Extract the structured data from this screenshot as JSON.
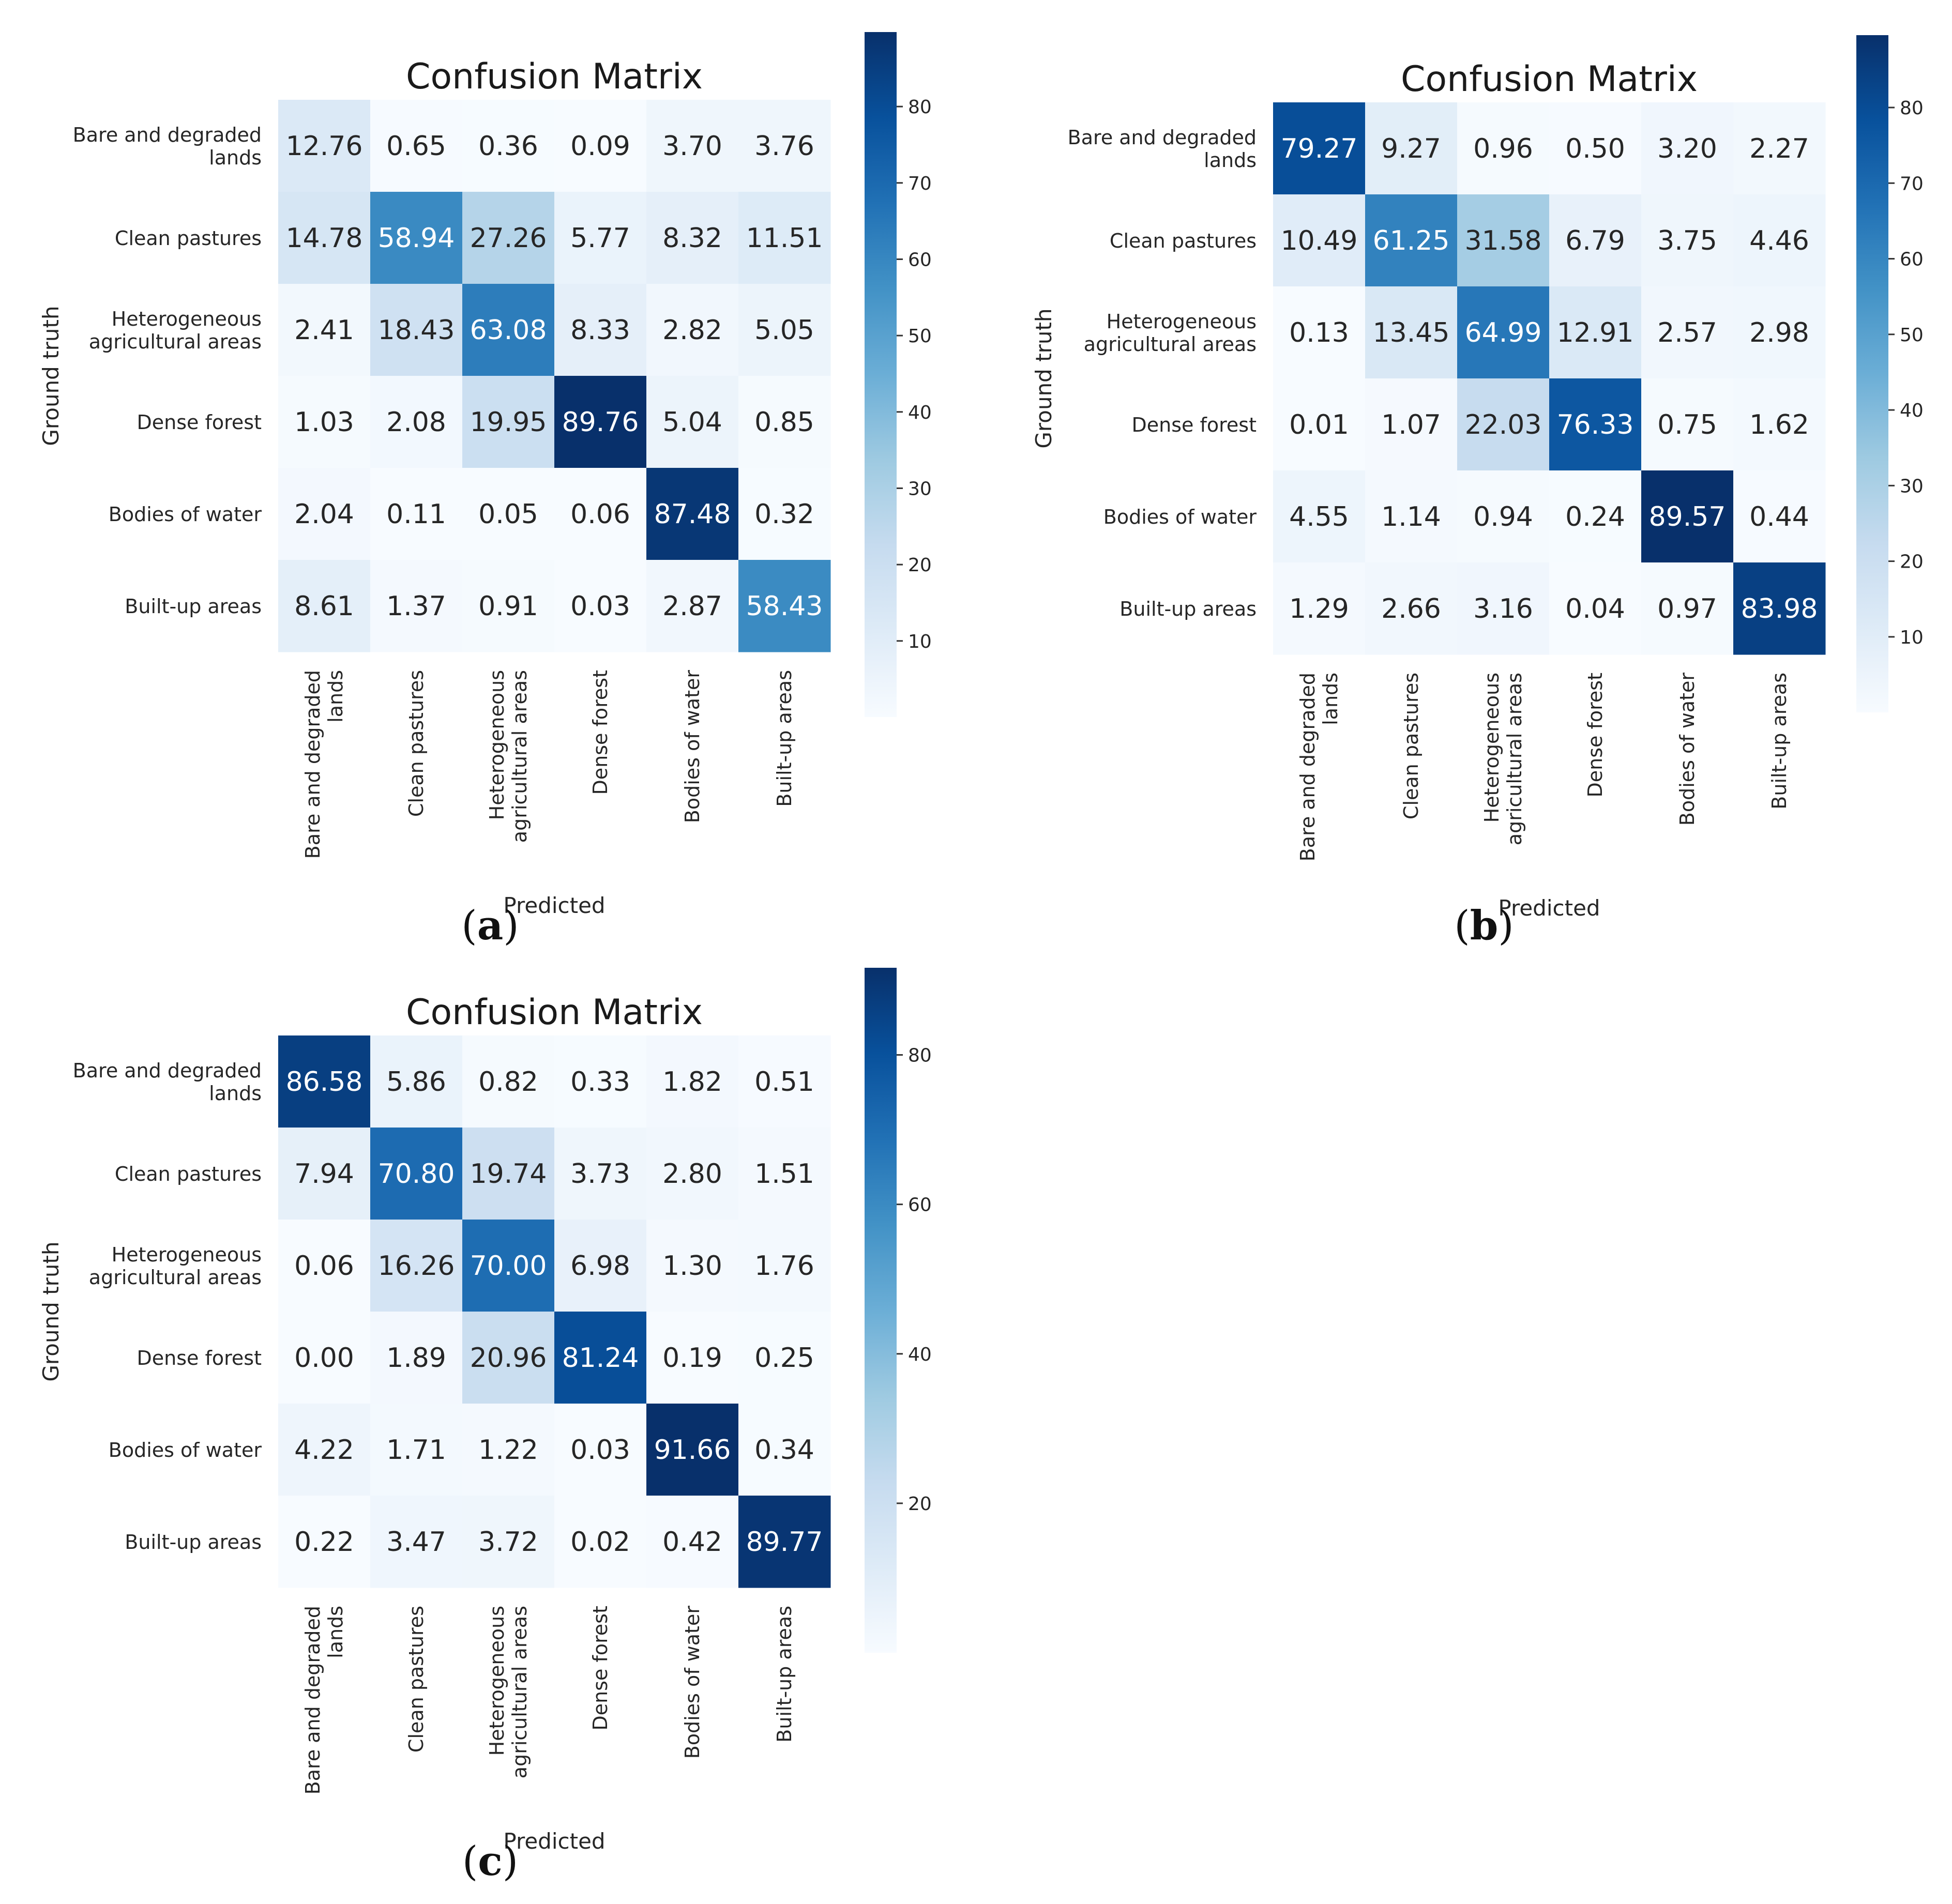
{
  "chart_data": [
    {
      "type": "heatmap",
      "panel_label": "a",
      "title": "Confusion Matrix",
      "xlabel": "Predicted",
      "ylabel": "Ground truth",
      "row_labels": [
        [
          "Bare and degraded",
          "lands"
        ],
        [
          "Clean pastures"
        ],
        [
          "Heterogeneous",
          "agricultural areas"
        ],
        [
          "Dense forest"
        ],
        [
          "Bodies of water"
        ],
        [
          "Built-up areas"
        ]
      ],
      "col_labels": [
        [
          "Bare and degraded",
          "lands"
        ],
        [
          "Clean pastures"
        ],
        [
          "Heterogeneous",
          "agricultural areas"
        ],
        [
          "Dense forest"
        ],
        [
          "Bodies of water"
        ],
        [
          "Built-up areas"
        ]
      ],
      "values": [
        [
          "12.76",
          "0.65",
          "0.36",
          "0.09",
          "3.70",
          "3.76"
        ],
        [
          "14.78",
          "58.94",
          "27.26",
          "5.77",
          "8.32",
          "11.51"
        ],
        [
          "2.41",
          "18.43",
          "63.08",
          "8.33",
          "2.82",
          "5.05"
        ],
        [
          "1.03",
          "2.08",
          "19.95",
          "89.76",
          "5.04",
          "0.85"
        ],
        [
          "2.04",
          "0.11",
          "0.05",
          "0.06",
          "87.48",
          "0.32"
        ],
        [
          "8.61",
          "1.37",
          "0.91",
          "0.03",
          "2.87",
          "58.43"
        ]
      ],
      "colorbar": {
        "vmin": 0.03,
        "vmax": 89.76,
        "ticks": [
          "10",
          "20",
          "30",
          "40",
          "50",
          "60",
          "70",
          "80"
        ]
      },
      "colormap": "Blues"
    },
    {
      "type": "heatmap",
      "panel_label": "b",
      "title": "Confusion Matrix",
      "xlabel": "Predicted",
      "ylabel": "Ground truth",
      "row_labels": [
        [
          "Bare and degraded",
          "lands"
        ],
        [
          "Clean pastures"
        ],
        [
          "Heterogeneous",
          "agricultural areas"
        ],
        [
          "Dense forest"
        ],
        [
          "Bodies of water"
        ],
        [
          "Built-up areas"
        ]
      ],
      "col_labels": [
        [
          "Bare and degraded",
          "lands"
        ],
        [
          "Clean pastures"
        ],
        [
          "Heterogeneous",
          "agricultural areas"
        ],
        [
          "Dense forest"
        ],
        [
          "Bodies of water"
        ],
        [
          "Built-up areas"
        ]
      ],
      "values": [
        [
          "79.27",
          "9.27",
          "0.96",
          "0.50",
          "3.20",
          "2.27"
        ],
        [
          "10.49",
          "61.25",
          "31.58",
          "6.79",
          "3.75",
          "4.46"
        ],
        [
          "0.13",
          "13.45",
          "64.99",
          "12.91",
          "2.57",
          "2.98"
        ],
        [
          "0.01",
          "1.07",
          "22.03",
          "76.33",
          "0.75",
          "1.62"
        ],
        [
          "4.55",
          "1.14",
          "0.94",
          "0.24",
          "89.57",
          "0.44"
        ],
        [
          "1.29",
          "2.66",
          "3.16",
          "0.04",
          "0.97",
          "83.98"
        ]
      ],
      "colorbar": {
        "vmin": 0.01,
        "vmax": 89.57,
        "ticks": [
          "10",
          "20",
          "30",
          "40",
          "50",
          "60",
          "70",
          "80"
        ]
      },
      "colormap": "Blues"
    },
    {
      "type": "heatmap",
      "panel_label": "c",
      "title": "Confusion Matrix",
      "xlabel": "Predicted",
      "ylabel": "Ground truth",
      "row_labels": [
        [
          "Bare and degraded",
          "lands"
        ],
        [
          "Clean pastures"
        ],
        [
          "Heterogeneous",
          "agricultural areas"
        ],
        [
          "Dense forest"
        ],
        [
          "Bodies of water"
        ],
        [
          "Built-up areas"
        ]
      ],
      "col_labels": [
        [
          "Bare and degraded",
          "lands"
        ],
        [
          "Clean pastures"
        ],
        [
          "Heterogeneous",
          "agricultural areas"
        ],
        [
          "Dense forest"
        ],
        [
          "Bodies of water"
        ],
        [
          "Built-up areas"
        ]
      ],
      "values": [
        [
          "86.58",
          "5.86",
          "0.82",
          "0.33",
          "1.82",
          "0.51"
        ],
        [
          "7.94",
          "70.80",
          "19.74",
          "3.73",
          "2.80",
          "1.51"
        ],
        [
          "0.06",
          "16.26",
          "70.00",
          "6.98",
          "1.30",
          "1.76"
        ],
        [
          "0.00",
          "1.89",
          "20.96",
          "81.24",
          "0.19",
          "0.25"
        ],
        [
          "4.22",
          "1.71",
          "1.22",
          "0.03",
          "91.66",
          "0.34"
        ],
        [
          "0.22",
          "3.47",
          "3.72",
          "0.02",
          "0.42",
          "89.77"
        ]
      ],
      "colorbar": {
        "vmin": 0.0,
        "vmax": 91.66,
        "ticks": [
          "20",
          "40",
          "60",
          "80"
        ]
      },
      "colormap": "Blues"
    }
  ]
}
